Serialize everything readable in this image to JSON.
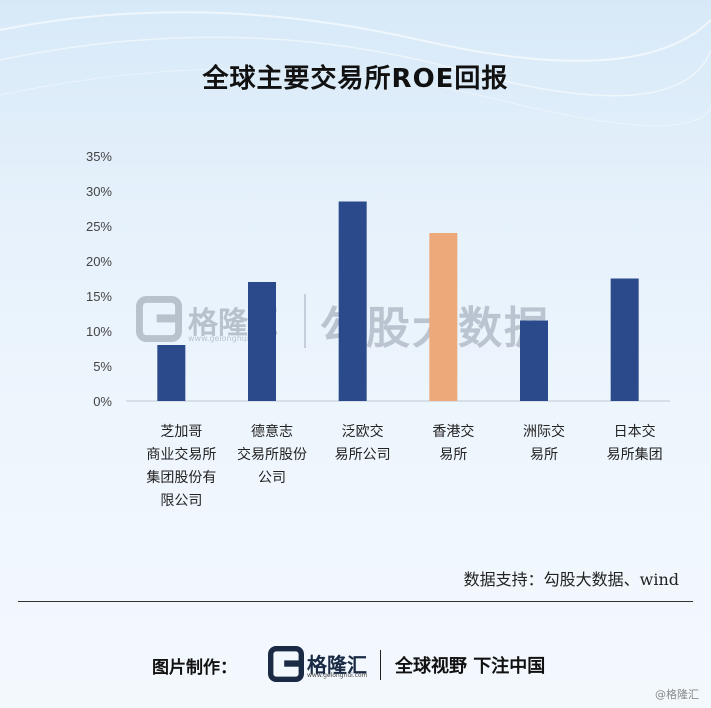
{
  "chart_data": {
    "type": "bar",
    "title": "全球主要交易所ROE回报",
    "categories": [
      [
        "芝加哥",
        "商业交易所",
        "集团股份有",
        "限公司"
      ],
      [
        "德意志",
        "交易所股份",
        "公司"
      ],
      [
        "泛欧交",
        "易所公司"
      ],
      [
        "香港交",
        "易所"
      ],
      [
        "洲际交",
        "易所"
      ],
      [
        "日本交",
        "易所集团"
      ]
    ],
    "values": [
      8,
      17,
      28.5,
      24,
      11.5,
      17.5
    ],
    "ylim": [
      0,
      35
    ],
    "yticks": [
      0,
      5,
      10,
      15,
      20,
      25,
      30,
      35
    ],
    "ytick_labels": [
      "0%",
      "5%",
      "10%",
      "15%",
      "20%",
      "25%",
      "30%",
      "35%"
    ],
    "bar_colors": [
      "#2b4a8c",
      "#2b4a8c",
      "#2b4a8c",
      "#eda97a",
      "#2b4a8c",
      "#2b4a8c"
    ],
    "grid": false,
    "legend": "none"
  },
  "source": "数据支持：勾股大数据、wind",
  "watermark": {
    "brand": "格隆汇",
    "url": "www.gelonghui.com",
    "text": "勾股大数据"
  },
  "footer": {
    "label": "图片制作：",
    "brand": "格隆汇",
    "url": "www.gelonghui.com",
    "slogan": "全球视野 下注中国"
  },
  "corner": "@格隆汇",
  "colors": {
    "bar": "#2b4a8c",
    "highlight": "#eda97a",
    "logo": "#1a2a44"
  },
  "icons": {
    "logo": "gelonghui-logo-icon"
  }
}
